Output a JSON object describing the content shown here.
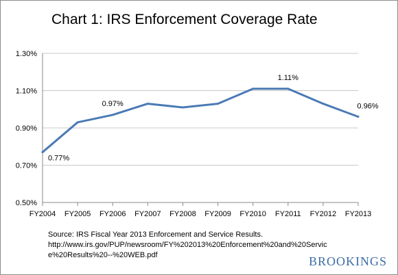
{
  "title": "Chart 1: IRS Enforcement  Coverage Rate",
  "source": {
    "line1": "Source: IRS Fiscal Year 2013 Enforcement and Service Results.",
    "line2": "http://www.irs.gov/PUP/newsroom/FY%202013%20Enforcement%20and%20Servic",
    "line3": "e%20Results%20--%20WEB.pdf"
  },
  "brand": "BROOKINGS",
  "colors": {
    "line": "#4a7ab5",
    "brand": "#3b6ca6",
    "axis": "#888888",
    "grid": "#c8c8c8"
  },
  "chart_data": {
    "type": "line",
    "title": "Chart 1: IRS Enforcement  Coverage Rate",
    "xlabel": "",
    "ylabel": "",
    "categories": [
      "FY2004",
      "FY2005",
      "FY2006",
      "FY2007",
      "FY2008",
      "FY2009",
      "FY2010",
      "FY2011",
      "FY2012",
      "FY2013"
    ],
    "series": [
      {
        "values": [
          0.77,
          0.93,
          0.97,
          1.03,
          1.01,
          1.03,
          1.11,
          1.11,
          1.03,
          0.96
        ]
      }
    ],
    "ylim": [
      0.5,
      1.3
    ],
    "yticks": [
      0.5,
      0.7,
      0.9,
      1.1,
      1.3
    ],
    "ytick_labels": [
      "0.50%",
      "0.70%",
      "0.90%",
      "1.10%",
      "1.30%"
    ],
    "grid": true,
    "legend": "none",
    "annotations": [
      {
        "index": 0,
        "text": "0.77%"
      },
      {
        "index": 2,
        "text": "0.97%"
      },
      {
        "index": 7,
        "text": "1.11%"
      },
      {
        "index": 9,
        "text": "0.96%"
      }
    ]
  }
}
